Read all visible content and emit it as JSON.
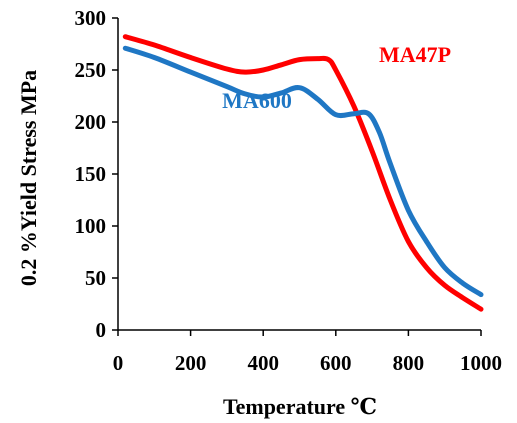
{
  "chart_data": {
    "type": "line",
    "title": "",
    "xlabel": "Temperature ℃",
    "ylabel": "0.2 %Yield Stress MPa",
    "xlim": [
      0,
      1000
    ],
    "ylim": [
      0,
      300
    ],
    "xticks": [
      0,
      200,
      400,
      600,
      800,
      1000
    ],
    "yticks": [
      0,
      50,
      100,
      150,
      200,
      250,
      300
    ],
    "xtick_labels": [
      "0",
      "200",
      "400",
      "600",
      "800",
      "1000"
    ],
    "ytick_labels": [
      "0",
      "50",
      "100",
      "150",
      "200",
      "250",
      "300"
    ],
    "grid": false,
    "legend": "none",
    "series": [
      {
        "name": "MA47P",
        "color": "#ff0000",
        "x": [
          20,
          100,
          200,
          300,
          350,
          400,
          450,
          500,
          550,
          580,
          600,
          650,
          700,
          750,
          800,
          850,
          900,
          950,
          1000
        ],
        "y": [
          282,
          274,
          262,
          251,
          248,
          250,
          255,
          260,
          261,
          260,
          250,
          215,
          172,
          125,
          85,
          60,
          43,
          31,
          20
        ]
      },
      {
        "name": "MA600",
        "color": "#1f77c4",
        "x": [
          20,
          100,
          200,
          300,
          350,
          400,
          450,
          500,
          550,
          600,
          650,
          690,
          720,
          750,
          800,
          850,
          900,
          950,
          1000
        ],
        "y": [
          271,
          262,
          248,
          234,
          227,
          224,
          228,
          233,
          222,
          207,
          208,
          208,
          190,
          160,
          115,
          85,
          60,
          45,
          34
        ]
      }
    ]
  }
}
